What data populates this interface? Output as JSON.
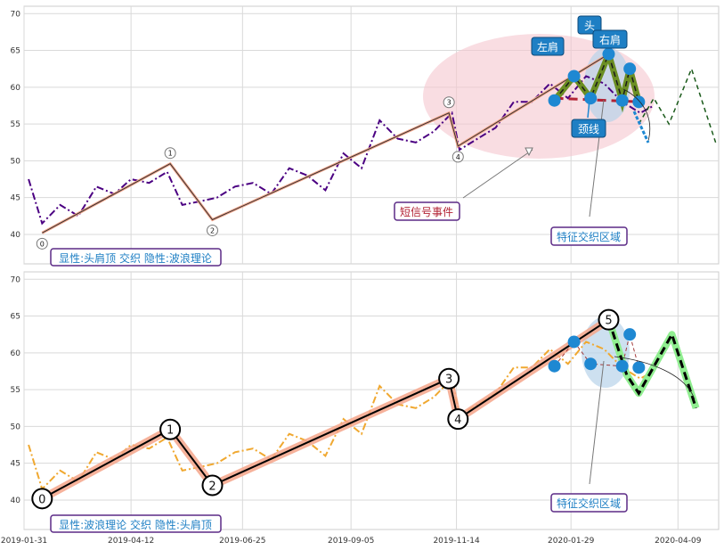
{
  "chart_data": [
    {
      "type": "line",
      "panel": "top",
      "ylim": [
        36,
        71
      ],
      "yticks": [
        40,
        45,
        50,
        55,
        60,
        65,
        70
      ],
      "xlim": [
        "2019-01-31",
        "2020-05-06"
      ],
      "grid": true,
      "price_series": {
        "x": [
          "2019-02-03",
          "2019-02-12",
          "2019-02-24",
          "2019-03-08",
          "2019-03-20",
          "2019-04-01",
          "2019-04-12",
          "2019-04-24",
          "2019-05-06",
          "2019-05-16",
          "2019-05-28",
          "2019-06-08",
          "2019-06-20",
          "2019-07-02",
          "2019-07-14",
          "2019-07-26",
          "2019-08-07",
          "2019-08-19",
          "2019-08-31",
          "2019-09-12",
          "2019-09-24",
          "2019-10-06",
          "2019-10-18",
          "2019-10-30",
          "2019-11-11",
          "2019-11-16",
          "2019-11-28",
          "2019-12-10",
          "2019-12-22",
          "2020-01-03",
          "2020-01-15",
          "2020-01-27",
          "2020-02-08",
          "2020-02-20",
          "2020-03-03",
          "2020-03-15",
          "2020-03-24"
        ],
        "y": [
          47.5,
          41.5,
          44.0,
          42.5,
          46.5,
          45.5,
          47.5,
          47.0,
          48.5,
          44.0,
          44.5,
          45.0,
          46.5,
          47.0,
          45.5,
          49.0,
          48.0,
          46.0,
          51.0,
          49.0,
          55.5,
          53.0,
          52.5,
          54.0,
          56.5,
          51.5,
          53.0,
          54.5,
          58.0,
          58.0,
          60.5,
          58.5,
          61.5,
          60.5,
          58.0,
          56.5,
          57.5
        ]
      },
      "wave_points": [
        {
          "label": "0",
          "x": "2019-02-12",
          "y": 40.2
        },
        {
          "label": "1",
          "x": "2019-05-08",
          "y": 49.6
        },
        {
          "label": "2",
          "x": "2019-06-05",
          "y": 42.0
        },
        {
          "label": "3",
          "x": "2019-11-09",
          "y": 56.5
        },
        {
          "label": "4",
          "x": "2019-11-15",
          "y": 52.0
        },
        {
          "label": "5",
          "x": "2020-02-23",
          "y": 64.5
        }
      ],
      "pattern": {
        "shoulder_points": [
          {
            "x": "2020-01-18",
            "y": 58.2
          },
          {
            "x": "2020-01-31",
            "y": 61.5
          },
          {
            "x": "2020-02-11",
            "y": 58.5
          },
          {
            "x": "2020-02-23",
            "y": 64.5
          },
          {
            "x": "2020-03-03",
            "y": 58.2
          },
          {
            "x": "2020-03-08",
            "y": 62.5
          },
          {
            "x": "2020-03-14",
            "y": 58.0
          }
        ],
        "neckline": [
          {
            "x": "2020-01-18",
            "y": 58.5
          },
          {
            "x": "2020-03-16",
            "y": 58.0
          }
        ],
        "projection": [
          {
            "x": "2020-03-14",
            "y": 55.0
          },
          {
            "x": "2020-03-24",
            "y": 58.5
          },
          {
            "x": "2020-04-03",
            "y": 55.0
          },
          {
            "x": "2020-04-18",
            "y": 62.5
          },
          {
            "x": "2020-05-04",
            "y": 52.5
          }
        ]
      },
      "text": {
        "box_label": "显性:头肩顶 交织 隐性:波浪理论",
        "short_signal": "短信号事件",
        "feature_zone": "特征交织区域",
        "left_shoulder": "左肩",
        "head": "头",
        "right_shoulder": "右肩",
        "neckline": "颈线"
      }
    },
    {
      "type": "line",
      "panel": "bottom",
      "ylim": [
        36,
        71
      ],
      "yticks": [
        40,
        45,
        50,
        55,
        60,
        65,
        70
      ],
      "xticks": [
        "2019-01-31",
        "2019-04-12",
        "2019-06-25",
        "2019-09-05",
        "2019-11-14",
        "2020-01-29",
        "2020-04-09"
      ],
      "grid": true,
      "wave_points": [
        {
          "label": "0",
          "x": "2019-02-12",
          "y": 40.2
        },
        {
          "label": "1",
          "x": "2019-05-08",
          "y": 49.6
        },
        {
          "label": "2",
          "x": "2019-06-05",
          "y": 42.0
        },
        {
          "label": "3",
          "x": "2019-11-09",
          "y": 56.5
        },
        {
          "label": "4",
          "x": "2019-11-15",
          "y": 51.0
        },
        {
          "label": "5",
          "x": "2020-02-23",
          "y": 64.5
        }
      ],
      "pattern": {
        "shoulder_points": [
          {
            "x": "2020-01-18",
            "y": 58.2
          },
          {
            "x": "2020-01-31",
            "y": 61.5
          },
          {
            "x": "2020-02-11",
            "y": 58.5
          },
          {
            "x": "2020-03-03",
            "y": 58.2
          },
          {
            "x": "2020-03-08",
            "y": 62.5
          },
          {
            "x": "2020-03-14",
            "y": 58.0
          }
        ],
        "projection": [
          {
            "x": "2020-02-23",
            "y": 64.5
          },
          {
            "x": "2020-03-06",
            "y": 57.0
          },
          {
            "x": "2020-03-14",
            "y": 54.5
          },
          {
            "x": "2020-04-05",
            "y": 62.5
          },
          {
            "x": "2020-04-21",
            "y": 52.5
          }
        ]
      },
      "text": {
        "box_label": "显性:波浪理论 交织 隐性:头肩顶",
        "feature_zone": "特征交织区域"
      }
    }
  ],
  "colors": {
    "top_price": "#4b0082",
    "bottom_price": "#f0a830",
    "wave_line": "#000000",
    "wave_halo": "#f4a58a",
    "ellipse": "#f5c6cf",
    "pattern_olive": "#6b8e23",
    "neckline": "#b22234",
    "marker_blue": "#1e88d2",
    "callout_blue": "#1e7fc4",
    "box_edge": "#5b2a86",
    "projection_green": "#90ee90",
    "label_text_blue": "#1e7fc4",
    "short_text": "#b22234"
  }
}
